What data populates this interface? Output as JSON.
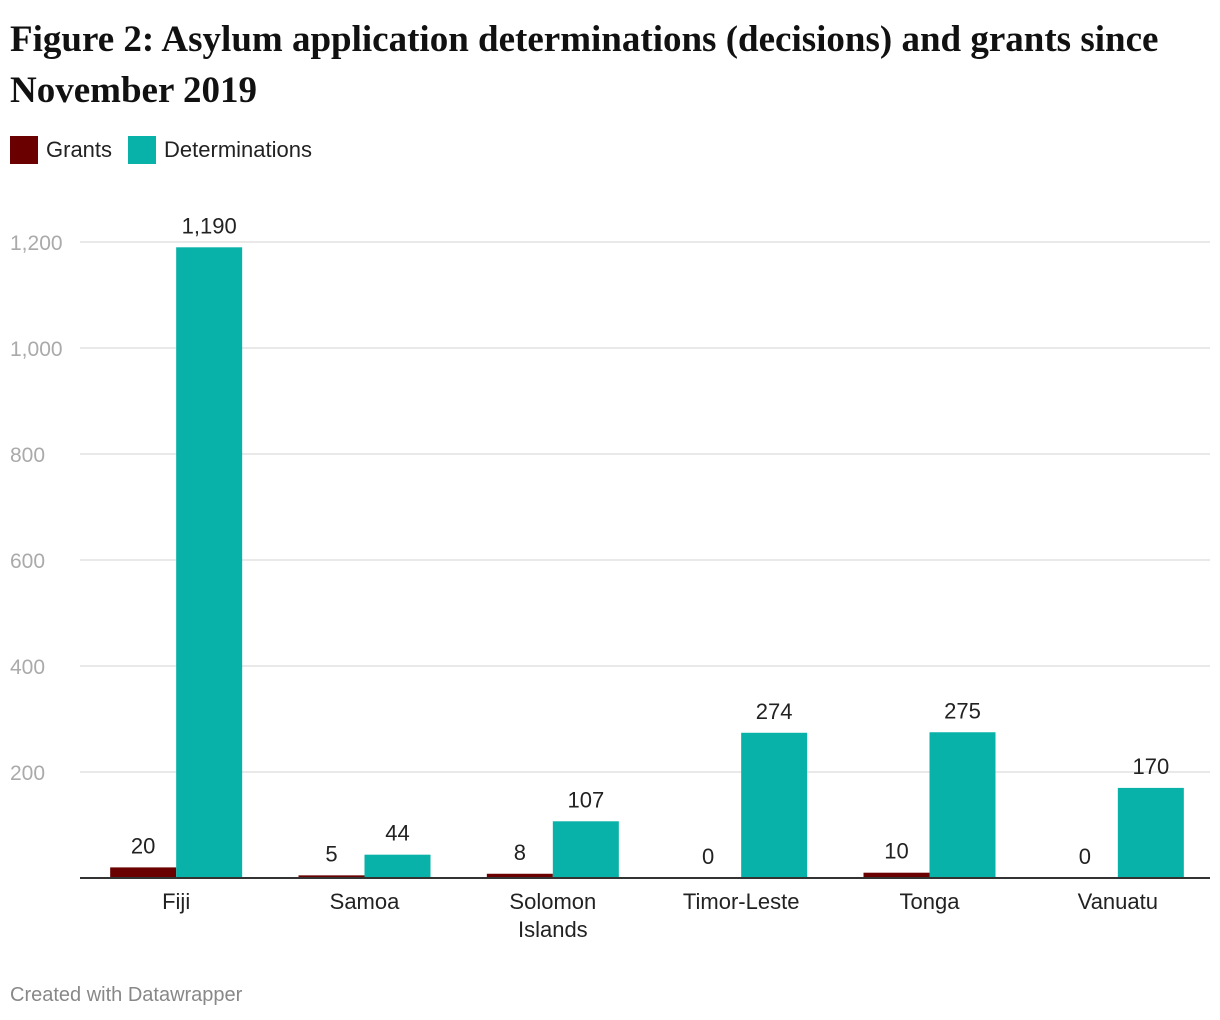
{
  "chart_data": {
    "type": "bar",
    "title": "Figure 2: Asylum application determinations (decisions) and grants since November 2019",
    "categories": [
      [
        "Fiji"
      ],
      [
        "Samoa"
      ],
      [
        "Solomon",
        "Islands"
      ],
      [
        "Timor-Leste"
      ],
      [
        "Tonga"
      ],
      [
        "Vanuatu"
      ]
    ],
    "series": [
      {
        "name": "Grants",
        "color": "#6b0000",
        "values": [
          20,
          5,
          8,
          0,
          10,
          0
        ],
        "labels": [
          "20",
          "5",
          "8",
          "0",
          "10",
          "0"
        ]
      },
      {
        "name": "Determinations",
        "color": "#08b2a8",
        "values": [
          1190,
          44,
          107,
          274,
          275,
          170
        ],
        "labels": [
          "1,190",
          "44",
          "107",
          "274",
          "275",
          "170"
        ]
      }
    ],
    "ylim": [
      0,
      1200
    ],
    "yticks": [
      200,
      400,
      600,
      800,
      1000,
      1200
    ],
    "ytick_labels": [
      "200",
      "400",
      "600",
      "800",
      "1,000",
      "1,200"
    ],
    "grid": true,
    "legend": "top-left"
  },
  "footer": "Created with Datawrapper"
}
